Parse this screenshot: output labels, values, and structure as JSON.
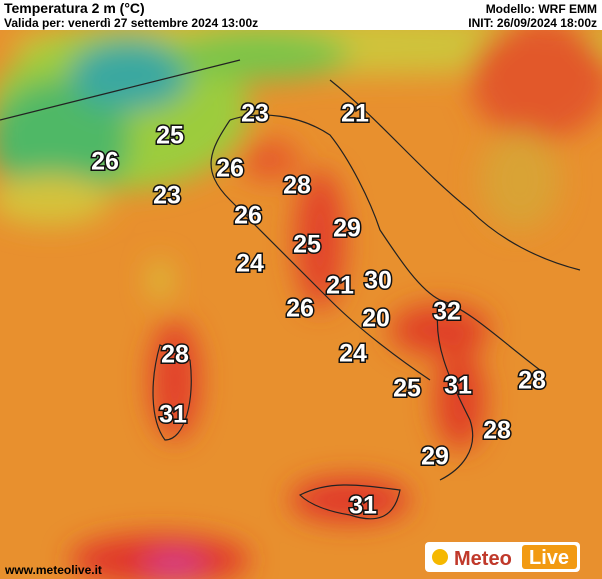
{
  "header": {
    "title": "Temperatura 2 m (°C)",
    "valid": "Valida per: venerdì 27 settembre 2024 13:00z",
    "model": "Modello: WRF EMM",
    "init": "INIT: 26/09/2024 18:00z"
  },
  "map": {
    "temperature_labels": [
      23,
      21,
      25,
      26,
      26,
      28,
      23,
      26,
      29,
      25,
      24,
      21,
      30,
      26,
      20,
      32,
      28,
      24,
      25,
      31,
      28,
      31,
      28,
      29,
      31
    ]
  },
  "footer": {
    "url": "www.meteolive.it",
    "logo_left": "Meteo",
    "logo_right": "Live"
  }
}
